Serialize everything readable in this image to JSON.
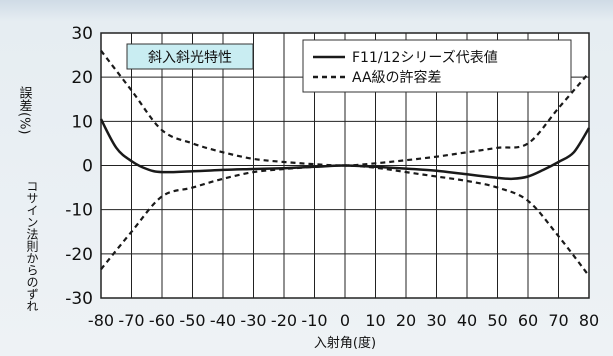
{
  "chart_data": {
    "type": "line",
    "title": "斜入斜光特性",
    "xlabel": "入射角(度)",
    "ylabel": "誤差(%)",
    "ylabel_sub": "コサイン法則からのずれ",
    "xlim": [
      -80,
      80
    ],
    "ylim": [
      -30,
      30
    ],
    "x_ticks": [
      -80,
      -70,
      -60,
      -50,
      -40,
      -30,
      -20,
      -10,
      0,
      10,
      20,
      30,
      40,
      50,
      60,
      70,
      80
    ],
    "x_tick_labels": [
      "-80",
      "-70",
      "-60",
      "-50",
      "-40",
      "-30",
      "-20",
      "-10",
      "0",
      "10",
      "20",
      "30",
      "40",
      "50",
      "60",
      "70",
      "80"
    ],
    "y_ticks": [
      30,
      20,
      10,
      0,
      -10,
      -20,
      -30
    ],
    "y_tick_labels": [
      "30",
      "20",
      "10",
      "0",
      "-10",
      "-20",
      "-30"
    ],
    "grid": true,
    "legend_position": "top-right",
    "series": [
      {
        "name": "F11/12シリーズ代表値",
        "style": "solid",
        "x": [
          -80,
          -75,
          -70,
          -65,
          -60,
          -50,
          -40,
          -30,
          -20,
          -10,
          0,
          10,
          20,
          30,
          40,
          50,
          55,
          60,
          65,
          70,
          75,
          80
        ],
        "y": [
          10.5,
          4,
          1,
          -0.8,
          -1.5,
          -1.3,
          -1,
          -0.8,
          -0.6,
          -0.3,
          0,
          -0.3,
          -0.7,
          -1.2,
          -2,
          -2.8,
          -3,
          -2.5,
          -1,
          0.8,
          3,
          8.5
        ]
      },
      {
        "name": "AA級の許容差",
        "style": "dashed",
        "x": [
          -80,
          -70,
          -60,
          -50,
          -40,
          -30,
          -20,
          -10,
          0,
          10,
          20,
          30,
          40,
          50,
          60,
          70,
          80
        ],
        "y": [
          26,
          17,
          8,
          5,
          3,
          1.5,
          0.8,
          0.3,
          0,
          0.5,
          1.2,
          2,
          3,
          4,
          5,
          13,
          21
        ]
      },
      {
        "name": "AA級の許容差",
        "style": "dashed",
        "x": [
          -80,
          -70,
          -60,
          -50,
          -40,
          -30,
          -20,
          -10,
          0,
          10,
          20,
          30,
          40,
          50,
          60,
          70,
          80
        ],
        "y": [
          -23.5,
          -15,
          -7,
          -5,
          -3,
          -1.5,
          -0.8,
          -0.3,
          0,
          -0.5,
          -1.5,
          -2.5,
          -3.5,
          -5,
          -8,
          -16,
          -25
        ]
      }
    ],
    "colors": {
      "line": "#1a1a1a",
      "grid": "#222222",
      "title_box": "#c9edf2",
      "plot_bg": "#ffffff"
    }
  }
}
